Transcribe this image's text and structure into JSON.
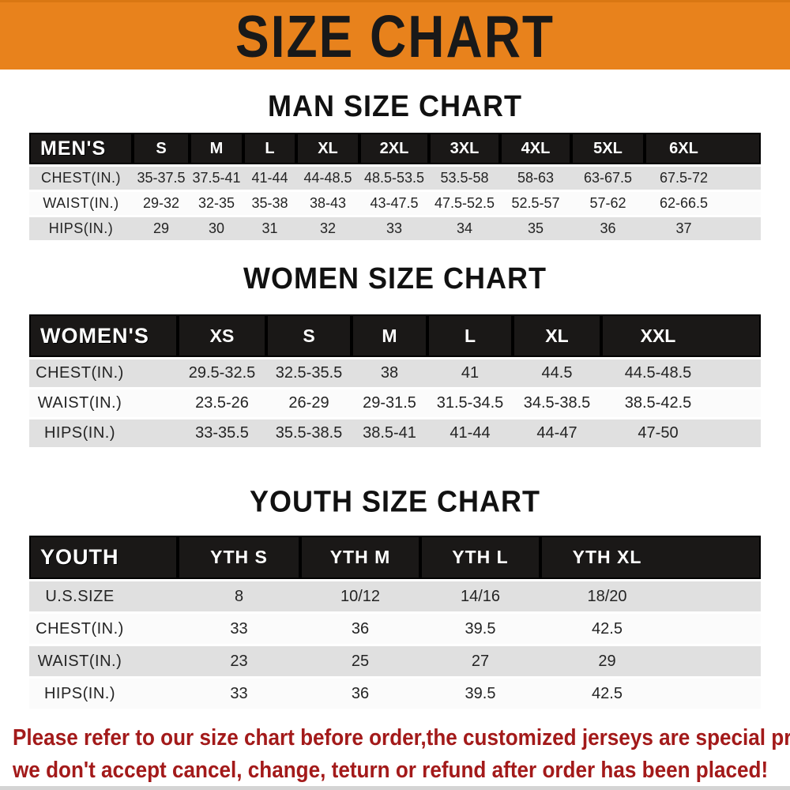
{
  "banner": {
    "title": "SIZE CHART"
  },
  "sections": [
    {
      "title": "MAN SIZE CHART",
      "table": {
        "label": "MEN'S",
        "sizes": [
          "S",
          "M",
          "L",
          "XL",
          "2XL",
          "3XL",
          "4XL",
          "5XL",
          "6XL"
        ],
        "rows": [
          {
            "label": "CHEST(IN.)",
            "values": [
              "35-37.5",
              "37.5-41",
              "41-44",
              "44-48.5",
              "48.5-53.5",
              "53.5-58",
              "58-63",
              "63-67.5",
              "67.5-72"
            ]
          },
          {
            "label": "WAIST(IN.)",
            "values": [
              "29-32",
              "32-35",
              "35-38",
              "38-43",
              "43-47.5",
              "47.5-52.5",
              "52.5-57",
              "57-62",
              "62-66.5"
            ]
          },
          {
            "label": "HIPS(IN.)",
            "values": [
              "29",
              "30",
              "31",
              "32",
              "33",
              "34",
              "35",
              "36",
              "37"
            ]
          }
        ]
      }
    },
    {
      "title": "WOMEN SIZE CHART",
      "table": {
        "label": "WOMEN'S",
        "sizes": [
          "XS",
          "S",
          "M",
          "L",
          "XL",
          "XXL"
        ],
        "rows": [
          {
            "label": "CHEST(IN.)",
            "values": [
              "29.5-32.5",
              "32.5-35.5",
              "38",
              "41",
              "44.5",
              "44.5-48.5"
            ]
          },
          {
            "label": "WAIST(IN.)",
            "values": [
              "23.5-26",
              "26-29",
              "29-31.5",
              "31.5-34.5",
              "34.5-38.5",
              "38.5-42.5"
            ]
          },
          {
            "label": "HIPS(IN.)",
            "values": [
              "33-35.5",
              "35.5-38.5",
              "38.5-41",
              "41-44",
              "44-47",
              "47-50"
            ]
          }
        ]
      }
    },
    {
      "title": "YOUTH SIZE CHART",
      "table": {
        "label": "YOUTH",
        "sizes": [
          "YTH S",
          "YTH M",
          "YTH L",
          "YTH XL"
        ],
        "rows": [
          {
            "label": "U.S.SIZE",
            "values": [
              "8",
              "10/12",
              "14/16",
              "18/20"
            ]
          },
          {
            "label": "CHEST(IN.)",
            "values": [
              "33",
              "36",
              "39.5",
              "42.5"
            ]
          },
          {
            "label": "WAIST(IN.)",
            "values": [
              "23",
              "25",
              "27",
              "29"
            ]
          },
          {
            "label": "HIPS(IN.)",
            "values": [
              "33",
              "36",
              "39.5",
              "42.5"
            ]
          }
        ]
      }
    }
  ],
  "footer": {
    "line1": "Please refer to our size chart before order,the customized jerseys are special products,",
    "line2": "we don't accept cancel, change, teturn or refund after order has been placed!"
  },
  "colors": {
    "banner_bg": "#E8821C",
    "banner_text": "#191919",
    "header_bar_bg": "#1A1817",
    "header_bar_text": "#FFFFFF",
    "row_stripe_gray": "#E0E0E0",
    "row_stripe_white": "#FBFBFB",
    "body_text": "#242424",
    "footer_text": "#A31A1A"
  }
}
